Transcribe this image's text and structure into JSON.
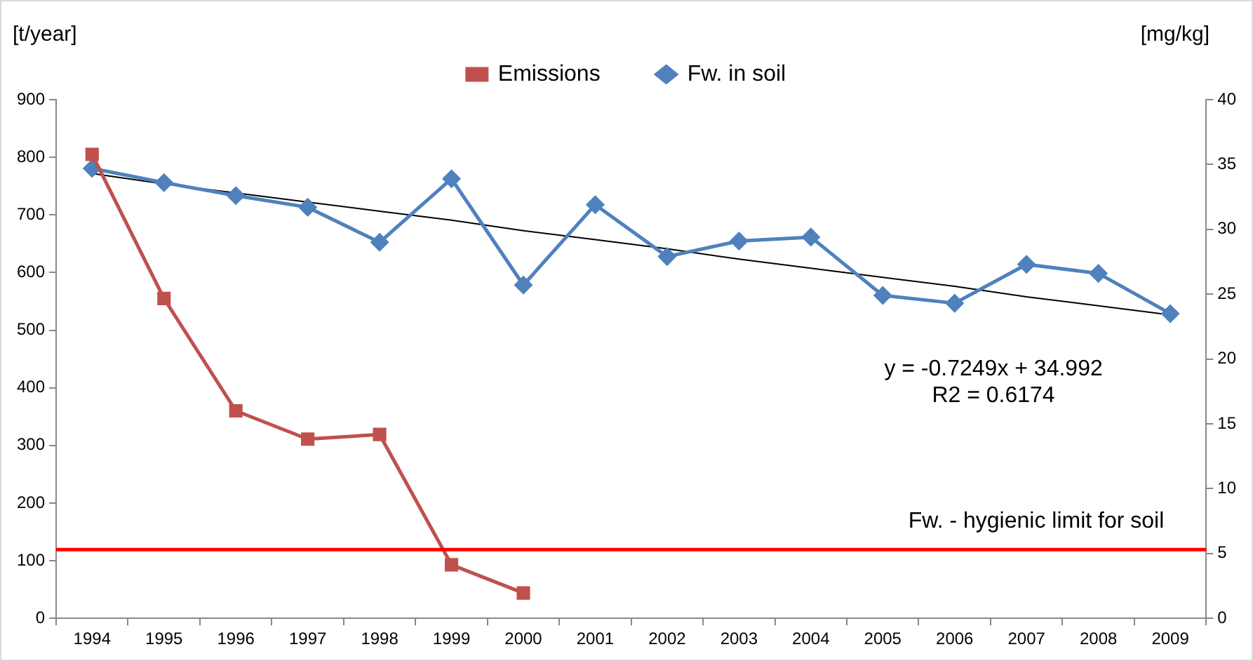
{
  "chart_data": {
    "type": "line",
    "ylabel": "[t/year]",
    "y2label": "[mg/kg]",
    "categories": [
      "1994",
      "1995",
      "1996",
      "1997",
      "1998",
      "1999",
      "2000",
      "2001",
      "2002",
      "2003",
      "2004",
      "2005",
      "2006",
      "2007",
      "2008",
      "2009"
    ],
    "series": [
      {
        "name": "Emissions",
        "color": "#c0504d",
        "marker": "square",
        "values": [
          805,
          555,
          360,
          311,
          319,
          93,
          44,
          null,
          null,
          null,
          null,
          null,
          null,
          null,
          null,
          null
        ]
      },
      {
        "name": "Fw. in soil",
        "color": "#4f81bd",
        "marker": "diamond",
        "axis": "y2",
        "values": [
          34.7,
          33.6,
          32.6,
          31.7,
          29.0,
          33.9,
          25.7,
          31.9,
          27.9,
          29.1,
          29.4,
          24.9,
          24.3,
          27.3,
          26.6,
          23.5
        ]
      },
      {
        "type": "line",
        "color": "#000000",
        "marker": "none",
        "axis": "y2",
        "values": [
          34.3,
          33.5,
          32.8,
          32.1,
          31.4,
          30.7,
          29.9,
          29.2,
          28.5,
          27.7,
          27.0,
          26.3,
          25.6,
          24.8,
          24.1,
          23.4
        ]
      }
    ],
    "ylim": [
      0,
      900
    ],
    "yticks": [
      0,
      100,
      200,
      300,
      400,
      500,
      600,
      700,
      800,
      900
    ],
    "y2lim": [
      0,
      40
    ],
    "y2ticks": [
      0,
      5,
      10,
      15,
      20,
      25,
      30,
      35,
      40
    ],
    "ref_lines": [
      {
        "axis": "y2",
        "value": 5.3,
        "label": "Fw. - hygienic limit for soil",
        "color": "#ff0000"
      }
    ],
    "annotations": [
      "y = -0.7249x + 34.992",
      "R2 = 0.6174"
    ],
    "grid": false,
    "legend": "top"
  }
}
